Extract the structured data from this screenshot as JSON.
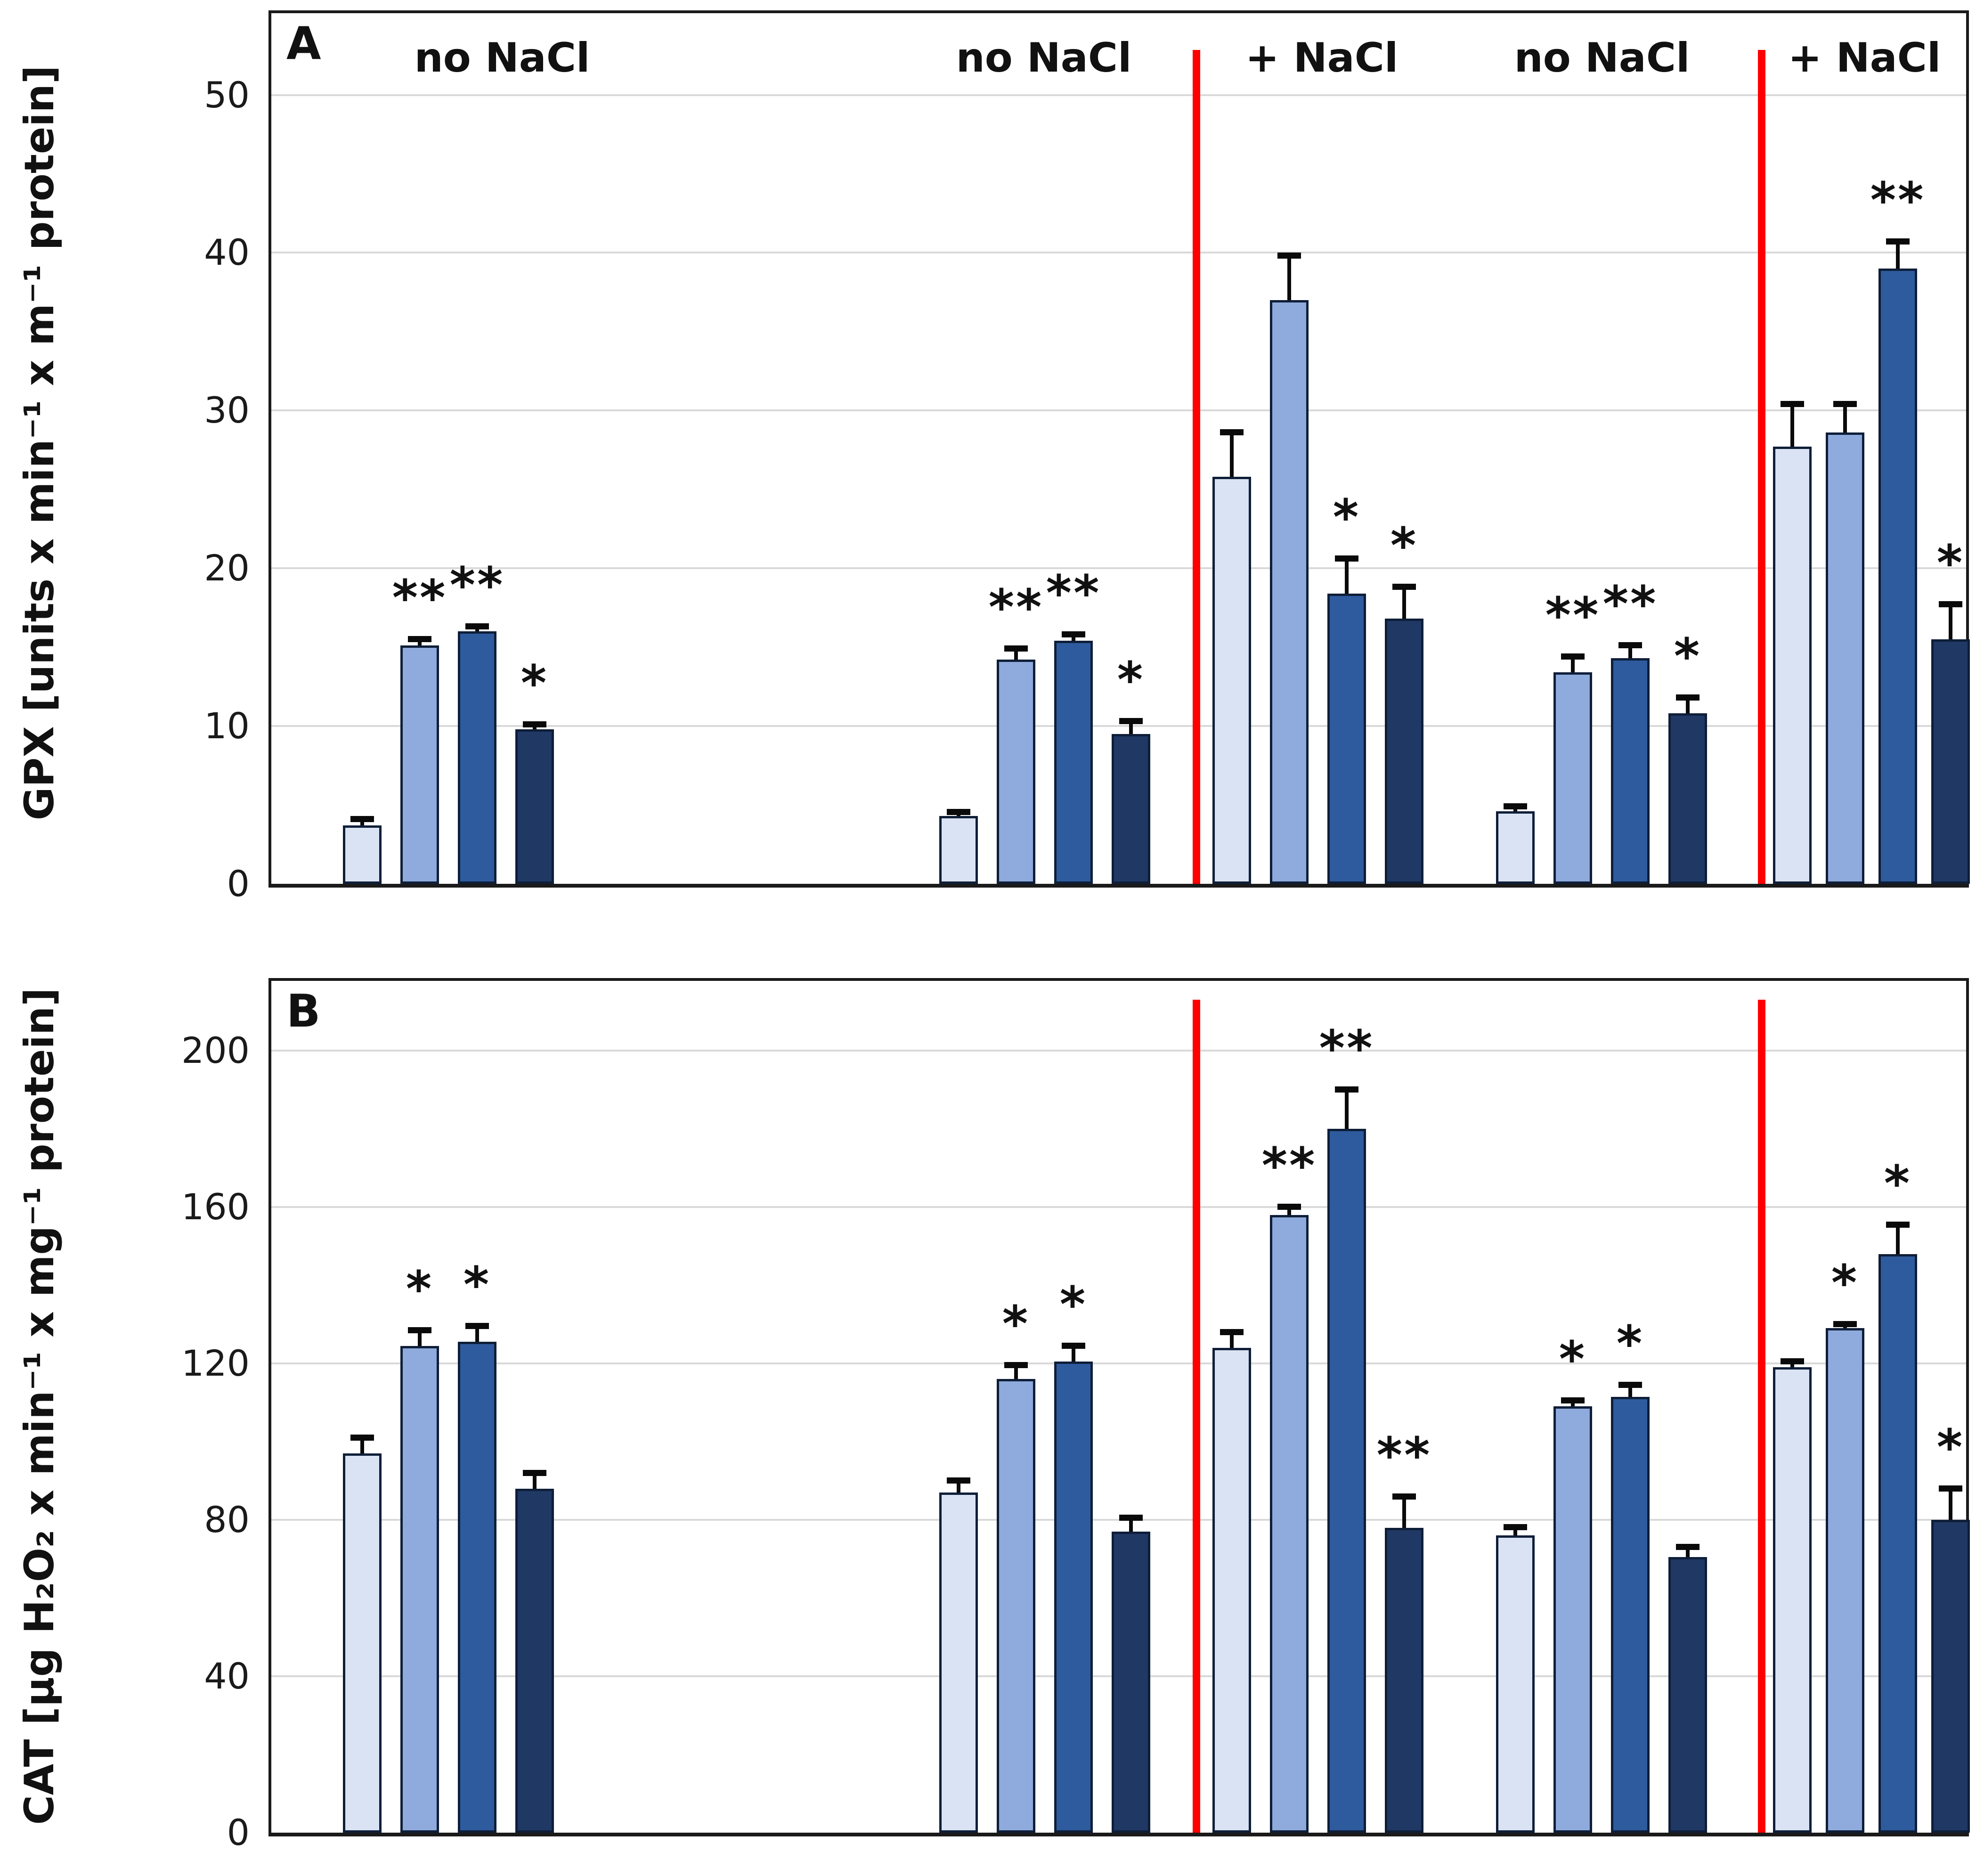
{
  "figure": {
    "series_colors": [
      "#dae3f3",
      "#8faadc",
      "#2e5b9e",
      "#203864"
    ],
    "bar_outline_color": "#0e1e38",
    "gridline_color": "#d9d9d9",
    "divider_color": "#fe0000",
    "error_bar_color": "#0a0a0a",
    "text_color": "#111111",
    "background_color": "#ffffff"
  },
  "chart_data": [
    {
      "panel": "A",
      "type": "bar",
      "ylabel": "GPX [units x min⁻¹ x m⁻¹ protein]",
      "yticks": [
        0,
        10,
        20,
        30,
        40,
        50
      ],
      "ylim": [
        0,
        55.4
      ],
      "grid": true,
      "legend": "none",
      "section_labels": [
        {
          "text": "no NaCl"
        },
        {
          "text": "no NaCl"
        },
        {
          "text": "+ NaCl"
        },
        {
          "text": "no NaCl"
        },
        {
          "text": "+ NaCl"
        }
      ],
      "dividers_after_group": [
        1,
        3
      ],
      "groups": [
        {
          "bars": [
            {
              "value": 3.7,
              "error": 0.4,
              "sig": ""
            },
            {
              "value": 15.1,
              "error": 0.4,
              "sig": "**"
            },
            {
              "value": 16.0,
              "error": 0.3,
              "sig": "**"
            },
            {
              "value": 9.8,
              "error": 0.3,
              "sig": "*"
            }
          ]
        },
        {
          "bars": [
            {
              "value": 4.3,
              "error": 0.2,
              "sig": ""
            },
            {
              "value": 14.2,
              "error": 0.7,
              "sig": "**"
            },
            {
              "value": 15.4,
              "error": 0.4,
              "sig": "**"
            },
            {
              "value": 9.5,
              "error": 0.8,
              "sig": "*"
            }
          ]
        },
        {
          "bars": [
            {
              "value": 25.8,
              "error": 2.8,
              "sig": ""
            },
            {
              "value": 37.0,
              "error": 2.8,
              "sig": ""
            },
            {
              "value": 18.4,
              "error": 2.2,
              "sig": "*"
            },
            {
              "value": 16.8,
              "error": 2.0,
              "sig": "*"
            }
          ]
        },
        {
          "bars": [
            {
              "value": 4.6,
              "error": 0.3,
              "sig": ""
            },
            {
              "value": 13.4,
              "error": 1.0,
              "sig": "**"
            },
            {
              "value": 14.3,
              "error": 0.8,
              "sig": "**"
            },
            {
              "value": 10.8,
              "error": 1.0,
              "sig": "*"
            }
          ]
        },
        {
          "bars": [
            {
              "value": 27.7,
              "error": 2.7,
              "sig": ""
            },
            {
              "value": 28.6,
              "error": 1.8,
              "sig": ""
            },
            {
              "value": 39.0,
              "error": 1.7,
              "sig": "**"
            },
            {
              "value": 15.5,
              "error": 2.2,
              "sig": "*"
            }
          ]
        }
      ]
    },
    {
      "panel": "B",
      "type": "bar",
      "ylabel": "CAT [µg H₂O₂ x min⁻¹ x mg⁻¹ protein]",
      "yticks": [
        0,
        40,
        80,
        120,
        160,
        200
      ],
      "ylim": [
        0,
        218
      ],
      "grid": true,
      "legend": "none",
      "section_labels": [],
      "dividers_after_group": [
        1,
        3
      ],
      "groups": [
        {
          "bars": [
            {
              "value": 97,
              "error": 4,
              "sig": ""
            },
            {
              "value": 124.5,
              "error": 4,
              "sig": "*"
            },
            {
              "value": 125.5,
              "error": 4,
              "sig": "*"
            },
            {
              "value": 88,
              "error": 4,
              "sig": ""
            }
          ]
        },
        {
          "bars": [
            {
              "value": 87,
              "error": 3,
              "sig": ""
            },
            {
              "value": 116,
              "error": 3.5,
              "sig": "*"
            },
            {
              "value": 120.5,
              "error": 4,
              "sig": "*"
            },
            {
              "value": 77,
              "error": 3.5,
              "sig": ""
            }
          ]
        },
        {
          "bars": [
            {
              "value": 124,
              "error": 4,
              "sig": ""
            },
            {
              "value": 158,
              "error": 2,
              "sig": "**"
            },
            {
              "value": 180,
              "error": 10,
              "sig": "**"
            },
            {
              "value": 78,
              "error": 8,
              "sig": "**"
            }
          ]
        },
        {
          "bars": [
            {
              "value": 76,
              "error": 2,
              "sig": ""
            },
            {
              "value": 109,
              "error": 1.5,
              "sig": "*"
            },
            {
              "value": 111.5,
              "error": 3,
              "sig": "*"
            },
            {
              "value": 70.5,
              "error": 2.5,
              "sig": ""
            }
          ]
        },
        {
          "bars": [
            {
              "value": 119,
              "error": 1.5,
              "sig": ""
            },
            {
              "value": 129,
              "error": 1,
              "sig": "*"
            },
            {
              "value": 148,
              "error": 7.5,
              "sig": "*"
            },
            {
              "value": 80,
              "error": 8,
              "sig": "*"
            }
          ]
        }
      ]
    }
  ]
}
